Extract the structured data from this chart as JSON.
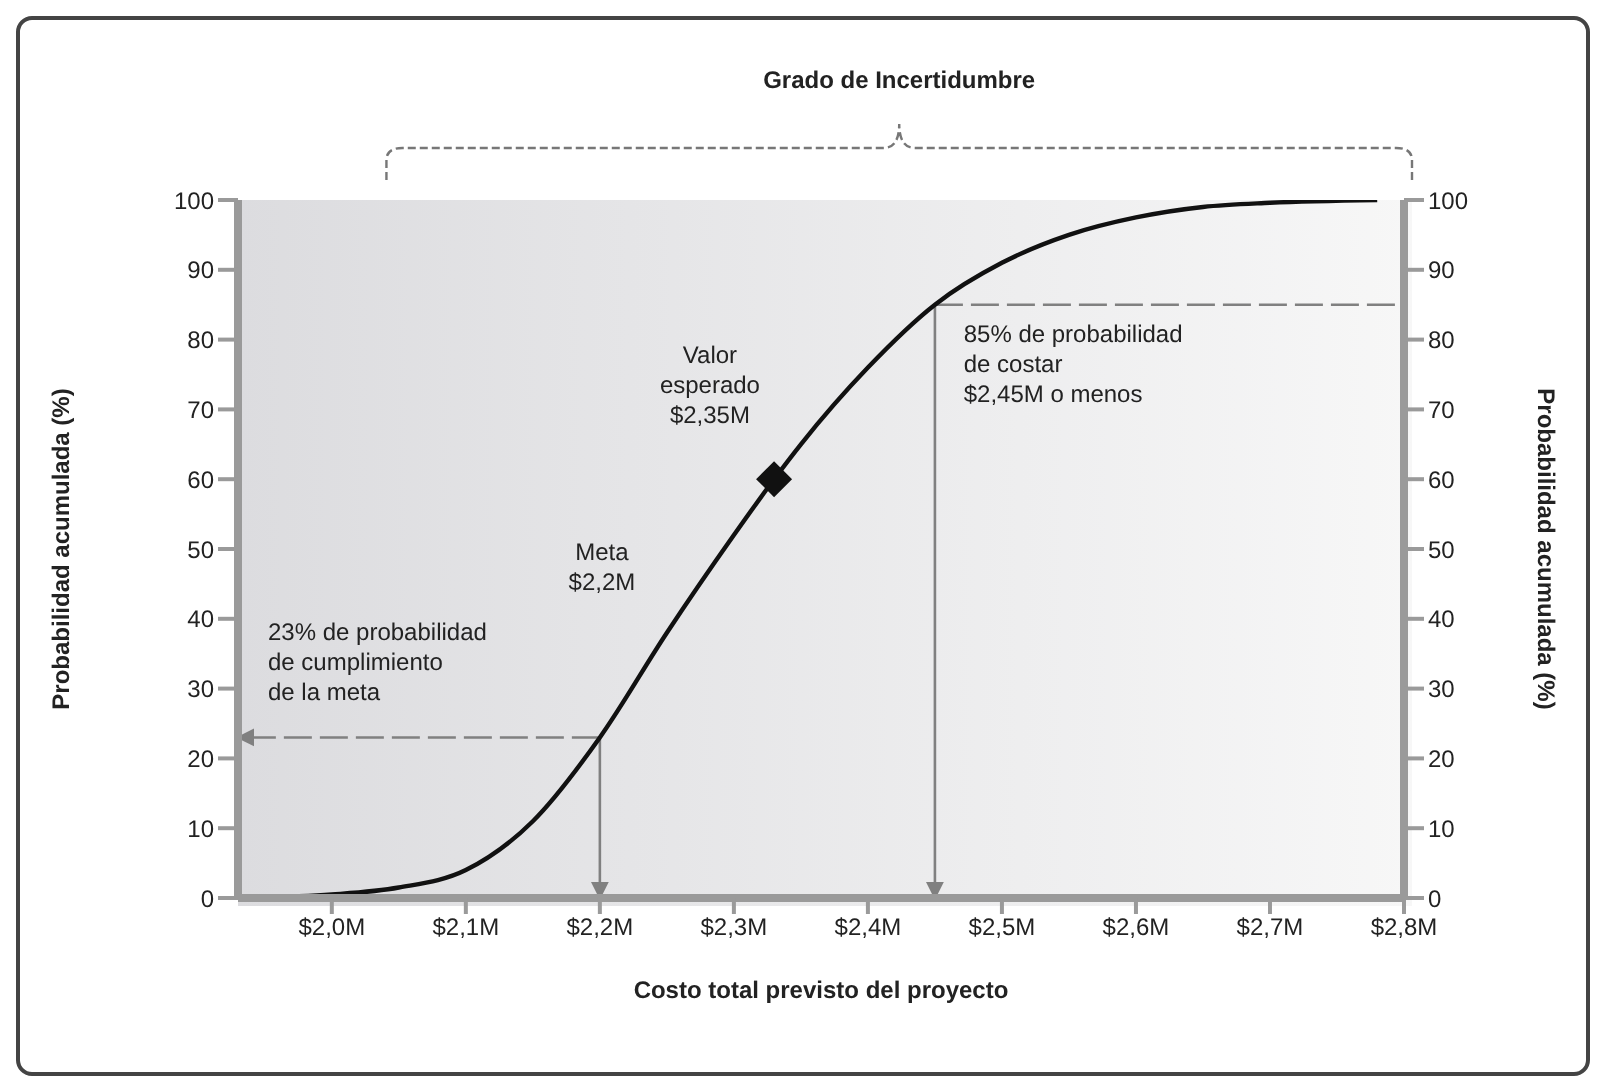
{
  "chart_data": {
    "type": "line",
    "xlabel": "Costo total previsto del proyecto",
    "ylabel": "Probabilidad acumulada (%)",
    "y2label": "Probabilidad acumulada (%)",
    "xlim": [
      1.93,
      2.8
    ],
    "xticks": [
      {
        "value": 2.0,
        "label": "$2,0M"
      },
      {
        "value": 2.1,
        "label": "$2,1M"
      },
      {
        "value": 2.2,
        "label": "$2,2M"
      },
      {
        "value": 2.3,
        "label": "$2,3M"
      },
      {
        "value": 2.4,
        "label": "$2,4M"
      },
      {
        "value": 2.5,
        "label": "$2,5M"
      },
      {
        "value": 2.6,
        "label": "$2,6M"
      },
      {
        "value": 2.7,
        "label": "$2,7M"
      },
      {
        "value": 2.8,
        "label": "$2,8M"
      }
    ],
    "ylim": [
      0,
      100
    ],
    "yticks": [
      0,
      10,
      20,
      30,
      40,
      50,
      60,
      70,
      80,
      90,
      100
    ],
    "y2lim": [
      0,
      100
    ],
    "y2ticks": [
      0,
      10,
      20,
      30,
      40,
      50,
      60,
      70,
      80,
      90,
      100
    ],
    "marker": "none",
    "line_style": "solid",
    "series": [
      {
        "color": "#111111",
        "x": [
          1.93,
          2.0,
          2.05,
          2.1,
          2.15,
          2.2,
          2.25,
          2.3,
          2.33,
          2.35,
          2.4,
          2.45,
          2.5,
          2.55,
          2.6,
          2.65,
          2.7,
          2.78
        ],
        "values": [
          0,
          0.5,
          1.5,
          4,
          11,
          23,
          38,
          52,
          60,
          65,
          76,
          85,
          91,
          95,
          97.5,
          99,
          99.6,
          100
        ]
      },
      {
        "type": "scatter",
        "marker": "diamond",
        "color": "#111111",
        "x": [
          2.33
        ],
        "values": [
          60
        ]
      }
    ],
    "ref_lines": [
      {
        "axis": "x",
        "value": 2.2,
        "color": "#808080",
        "line_style": "solid"
      },
      {
        "axis": "x",
        "value": 2.45,
        "color": "#808080",
        "line_style": "solid"
      },
      {
        "axis": "y",
        "value": 23,
        "color": "#808080",
        "line_style": "dashed"
      },
      {
        "axis": "y",
        "value": 85,
        "color": "#808080",
        "line_style": "dashed"
      }
    ],
    "annotations": [
      {
        "text": "23% de probabilidad\nde cumplimiento\nde la meta",
        "x": 1.93,
        "y": 23
      },
      "Meta\n$2,2M",
      "Valor\nesperado\n$2,35M",
      {
        "text": "85% de probabilidad\nde costar\n$2,45M o menos",
        "x": 2.45,
        "y": 85
      },
      "Grado de Incertidumbre"
    ]
  }
}
